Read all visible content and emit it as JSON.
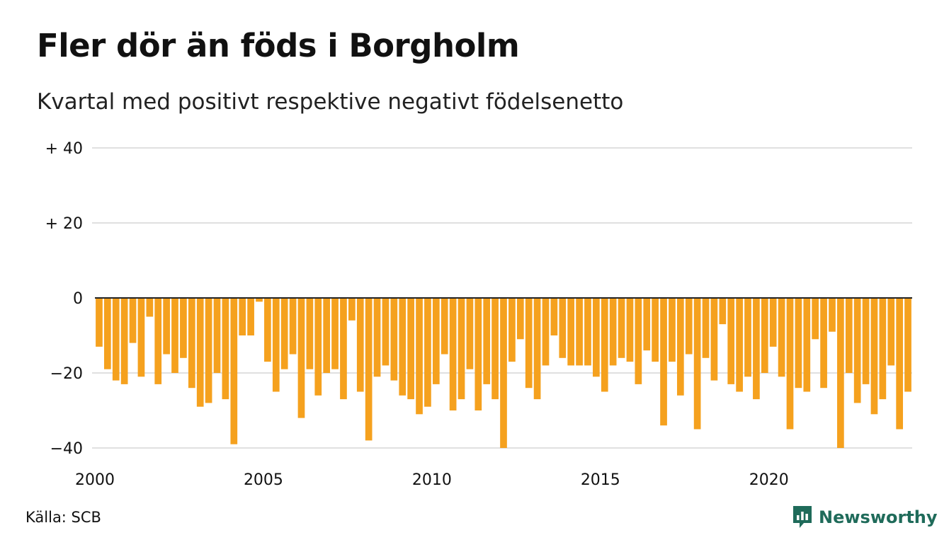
{
  "title": "Fler dör än föds i Borgholm",
  "subtitle": "Kvartal med positivt respektive negativt födelsenetto",
  "source": "Källa: SCB",
  "logo": "Newsworthy",
  "colors": {
    "bar": "#f5a11e",
    "grid": "#e0e0e0",
    "zero": "#222222",
    "logo": "#1f6b5a"
  },
  "chart_data": {
    "type": "bar",
    "title": "Fler dör än föds i Borgholm",
    "subtitle": "Kvartal med positivt respektive negativt födelsenetto",
    "x_start_year": 2000,
    "x_ticks": [
      "2000",
      "2005",
      "2010",
      "2015",
      "2020"
    ],
    "y_ticks": [
      {
        "value": 40,
        "label": "+ 40"
      },
      {
        "value": 20,
        "label": "+ 20"
      },
      {
        "value": 0,
        "label": "0"
      },
      {
        "value": -20,
        "label": "−20"
      },
      {
        "value": -40,
        "label": "−40"
      }
    ],
    "ylim": [
      -40,
      40
    ],
    "grid": true,
    "values": [
      -13,
      -19,
      -22,
      -23,
      -12,
      -21,
      -5,
      -23,
      -15,
      -20,
      -16,
      -24,
      -29,
      -28,
      -20,
      -27,
      -39,
      -10,
      -10,
      -1,
      -17,
      -25,
      -19,
      -15,
      -32,
      -19,
      -26,
      -20,
      -19,
      -27,
      -6,
      -25,
      -38,
      -21,
      -18,
      -22,
      -26,
      -27,
      -31,
      -29,
      -23,
      -15,
      -30,
      -27,
      -19,
      -30,
      -23,
      -27,
      -40,
      -17,
      -11,
      -24,
      -27,
      -18,
      -10,
      -16,
      -18,
      -18,
      -18,
      -21,
      -25,
      -18,
      -16,
      -17,
      -23,
      -14,
      -17,
      -34,
      -17,
      -26,
      -15,
      -35,
      -16,
      -22,
      -7,
      -23,
      -25,
      -21,
      -27,
      -20,
      -13,
      -21,
      -35,
      -24,
      -25,
      -11,
      -24,
      -9,
      -40,
      -20,
      -28,
      -23,
      -31,
      -27,
      -18,
      -35,
      -25
    ]
  }
}
